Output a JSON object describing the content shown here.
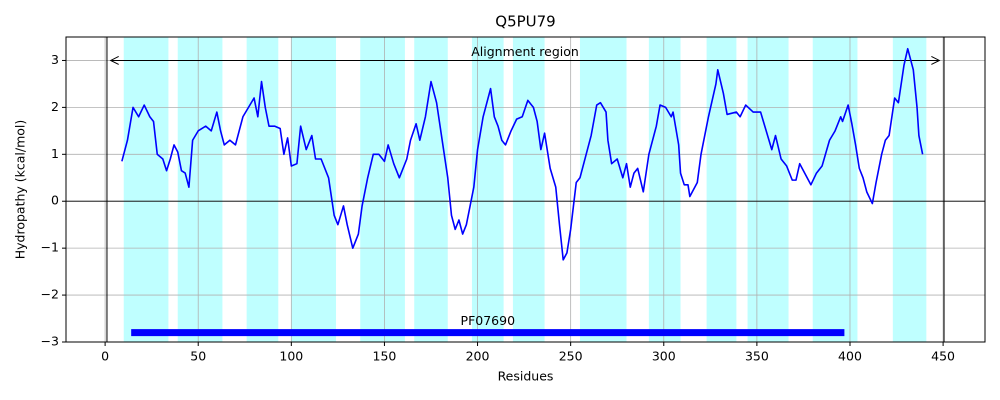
{
  "chart_data": {
    "type": "line",
    "title": "Q5PU79",
    "x_label": "Residues",
    "y_label": "Hydropathy (kcal/mol)",
    "xlim": [
      -21,
      472.5
    ],
    "ylim": [
      -3,
      3.5
    ],
    "xticks": [
      0,
      50,
      100,
      150,
      200,
      250,
      300,
      350,
      400,
      450
    ],
    "yticks": [
      {
        "value": -3,
        "label": "−3"
      },
      {
        "value": -2,
        "label": "−2"
      },
      {
        "value": -1,
        "label": "−1"
      },
      0,
      1,
      2,
      3
    ],
    "grid": true,
    "zero_line": 0,
    "boundaries": [
      1,
      450.5
    ],
    "regions": [
      [
        10,
        34
      ],
      [
        39,
        63
      ],
      [
        76,
        93
      ],
      [
        100,
        124
      ],
      [
        137,
        161
      ],
      [
        166,
        184
      ],
      [
        197,
        214
      ],
      [
        219,
        236
      ],
      [
        255,
        280
      ],
      [
        292,
        309
      ],
      [
        323,
        339
      ],
      [
        345,
        367
      ],
      [
        380,
        404
      ],
      [
        423,
        441
      ]
    ],
    "region_color": "#bfffff",
    "alignment": {
      "label": "Alignment region",
      "start": 3,
      "end": 448,
      "y": 3
    },
    "domain": {
      "label": "PF07690",
      "start": 14,
      "end": 397,
      "y": -2.8,
      "color": "#0000ff"
    },
    "x": [
      9,
      12,
      15,
      18,
      21,
      24,
      26,
      28,
      31,
      33,
      35,
      37,
      39,
      41,
      43,
      45,
      47,
      50,
      54,
      57,
      60,
      62,
      64,
      67,
      70,
      74,
      77,
      80,
      82,
      84,
      86,
      88,
      91,
      94,
      96,
      98,
      100,
      103,
      105,
      108,
      111,
      113,
      116,
      120,
      123,
      125,
      128,
      130,
      133,
      136,
      138,
      141,
      144,
      147,
      150,
      152,
      155,
      158,
      162,
      164,
      167,
      169,
      172,
      175,
      178,
      181,
      184,
      186,
      188,
      190,
      192,
      194,
      196,
      198,
      200,
      203,
      205,
      207,
      209,
      211,
      213,
      215,
      218,
      221,
      224,
      227,
      230,
      232,
      234,
      236,
      239,
      242,
      244,
      246,
      248,
      250,
      253,
      255,
      261,
      264,
      266,
      269,
      270,
      272,
      275,
      278,
      280,
      282,
      284,
      286,
      289,
      292,
      296,
      298,
      301,
      304,
      305,
      308,
      309,
      311,
      313,
      314,
      318,
      320,
      324,
      328,
      329,
      332,
      334,
      339,
      341,
      344,
      348,
      352,
      358,
      360,
      363,
      366,
      369,
      371,
      373,
      379,
      382,
      385,
      389,
      392,
      395,
      396,
      399,
      401,
      403,
      405,
      407,
      409,
      412,
      414,
      417,
      419,
      421,
      424,
      426,
      429,
      431,
      434,
      436,
      437,
      439
    ],
    "series": [
      {
        "color": "#0000ff",
        "values": [
          0.85,
          1.3,
          2.0,
          1.8,
          2.05,
          1.8,
          1.7,
          1.0,
          0.9,
          0.65,
          0.9,
          1.2,
          1.05,
          0.65,
          0.6,
          0.3,
          1.3,
          1.5,
          1.6,
          1.5,
          1.9,
          1.5,
          1.2,
          1.3,
          1.2,
          1.8,
          2.0,
          2.2,
          1.8,
          2.55,
          2.0,
          1.6,
          1.6,
          1.55,
          1.0,
          1.35,
          0.75,
          0.8,
          1.6,
          1.1,
          1.4,
          0.9,
          0.9,
          0.5,
          -0.3,
          -0.5,
          -0.1,
          -0.5,
          -1.0,
          -0.7,
          -0.1,
          0.5,
          1.0,
          1.0,
          0.85,
          1.2,
          0.8,
          0.5,
          0.9,
          1.3,
          1.65,
          1.3,
          1.8,
          2.55,
          2.1,
          1.3,
          0.5,
          -0.3,
          -0.6,
          -0.4,
          -0.7,
          -0.5,
          -0.1,
          0.3,
          1.1,
          1.8,
          2.1,
          2.4,
          1.8,
          1.6,
          1.3,
          1.2,
          1.5,
          1.75,
          1.8,
          2.15,
          2.0,
          1.7,
          1.1,
          1.45,
          0.7,
          0.3,
          -0.5,
          -1.25,
          -1.1,
          -0.6,
          0.4,
          0.5,
          1.4,
          2.05,
          2.1,
          1.9,
          1.3,
          0.8,
          0.9,
          0.5,
          0.8,
          0.3,
          0.6,
          0.7,
          0.2,
          1.0,
          1.6,
          2.05,
          2.0,
          1.8,
          1.9,
          1.2,
          0.6,
          0.35,
          0.35,
          0.1,
          0.4,
          1.0,
          1.8,
          2.5,
          2.8,
          2.3,
          1.85,
          1.9,
          1.8,
          2.05,
          1.9,
          1.9,
          1.1,
          1.4,
          0.9,
          0.75,
          0.45,
          0.45,
          0.8,
          0.35,
          0.6,
          0.75,
          1.3,
          1.5,
          1.8,
          1.7,
          2.05,
          1.65,
          1.2,
          0.7,
          0.5,
          0.2,
          -0.05,
          0.4,
          1.0,
          1.3,
          1.4,
          2.2,
          2.1,
          2.9,
          3.25,
          2.8,
          2.0,
          1.4,
          1.0
        ]
      }
    ]
  }
}
